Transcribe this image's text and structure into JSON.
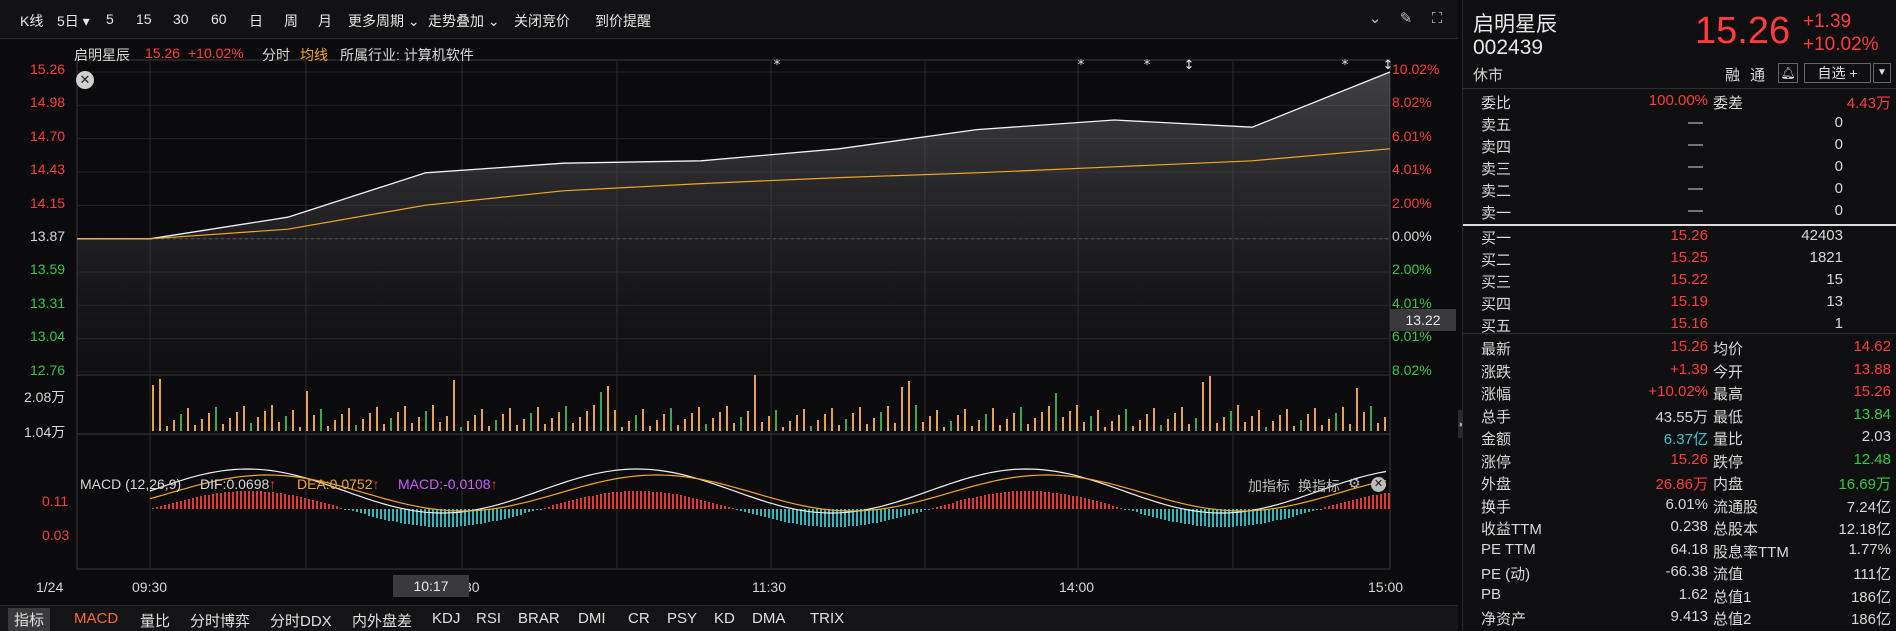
{
  "toolbar": {
    "items": [
      "K线",
      "5日",
      "5",
      "15",
      "30",
      "60",
      "日",
      "周",
      "月",
      "更多周期",
      "走势叠加",
      "关闭竞价",
      "到价提醒"
    ]
  },
  "header": {
    "name": "启明星辰",
    "price": "15.26",
    "pct": "+10.02%",
    "mode": "分时",
    "ma": "均线",
    "industry": "所属行业: 计算机软件"
  },
  "price_axis": {
    "left": [
      "15.26",
      "14.98",
      "14.70",
      "14.43",
      "14.15",
      "13.87",
      "13.59",
      "13.31",
      "13.04",
      "12.76"
    ],
    "right": [
      "10.02%",
      "8.02%",
      "6.01%",
      "4.01%",
      "2.00%",
      "0.00%",
      "2.00%",
      "4.01%",
      "6.01%",
      "8.02%"
    ],
    "cursor_value": "13.22"
  },
  "volume_axis": [
    "2.08万",
    "1.04万"
  ],
  "macd": {
    "title": "MACD (12,26,9)",
    "dif": "DIF:0.0698",
    "dea": "DEA:0.0752",
    "macd": "MACD:-0.0108",
    "axis": [
      "0.11",
      "0.03"
    ],
    "add_indicator": "加指标",
    "switch_indicator": "换指标"
  },
  "time_axis": {
    "date": "1/24",
    "labels": [
      "09:30",
      "30",
      "11:30",
      "14:00",
      "15:00"
    ],
    "cursor": "10:17"
  },
  "bottom_tabs": [
    "指标",
    "MACD",
    "量比",
    "分时博弈",
    "分时DDX",
    "内外盘差",
    "KDJ",
    "RSI",
    "BRAR",
    "DMI",
    "CR",
    "PSY",
    "KD",
    "DMA",
    "TRIX"
  ],
  "chart_data": {
    "type": "line",
    "title": "",
    "xlabel": "",
    "ylabel": "",
    "ylim": [
      12.76,
      15.26
    ],
    "prev_close": 13.87,
    "x": [
      "09:30",
      "10:00",
      "10:30",
      "11:00",
      "11:30",
      "13:00",
      "13:30",
      "14:00",
      "14:30",
      "15:00"
    ],
    "series": [
      {
        "name": "",
        "values": [
          13.87,
          14.05,
          14.42,
          14.5,
          14.52,
          14.62,
          14.78,
          14.86,
          14.8,
          15.26
        ]
      },
      {
        "name": "均线",
        "values": [
          13.87,
          13.95,
          14.15,
          14.27,
          14.33,
          14.38,
          14.42,
          14.47,
          14.52,
          14.62
        ]
      }
    ]
  },
  "quote": {
    "name": "启明星辰",
    "code": "002439",
    "status": "休市",
    "price": "15.26",
    "change": "+1.39",
    "pct": "+10.02%",
    "rong": "融",
    "tong": "通",
    "self_select": "自选 +",
    "weibi_label": "委比",
    "weibi": "100.00%",
    "weicha_label": "委差",
    "weicha": "4.43万",
    "sells": [
      {
        "label": "卖五",
        "price": "—",
        "vol": "0"
      },
      {
        "label": "卖四",
        "price": "—",
        "vol": "0"
      },
      {
        "label": "卖三",
        "price": "—",
        "vol": "0"
      },
      {
        "label": "卖二",
        "price": "—",
        "vol": "0"
      },
      {
        "label": "卖一",
        "price": "—",
        "vol": "0"
      }
    ],
    "buys": [
      {
        "label": "买一",
        "price": "15.26",
        "vol": "42403"
      },
      {
        "label": "买二",
        "price": "15.25",
        "vol": "1821"
      },
      {
        "label": "买三",
        "price": "15.22",
        "vol": "15"
      },
      {
        "label": "买四",
        "price": "15.19",
        "vol": "13"
      },
      {
        "label": "买五",
        "price": "15.16",
        "vol": "1"
      }
    ],
    "stats": [
      {
        "l1": "最新",
        "v1": "15.26",
        "c1": "red",
        "l2": "均价",
        "v2": "14.62",
        "c2": "red"
      },
      {
        "l1": "涨跌",
        "v1": "+1.39",
        "c1": "red",
        "l2": "今开",
        "v2": "13.88",
        "c2": "red"
      },
      {
        "l1": "涨幅",
        "v1": "+10.02%",
        "c1": "red",
        "l2": "最高",
        "v2": "15.26",
        "c2": "red"
      },
      {
        "l1": "总手",
        "v1": "43.55万",
        "c1": "white",
        "l2": "最低",
        "v2": "13.84",
        "c2": "green"
      },
      {
        "l1": "金额",
        "v1": "6.37亿",
        "c1": "cyan",
        "l2": "量比",
        "v2": "2.03",
        "c2": "white"
      },
      {
        "l1": "涨停",
        "v1": "15.26",
        "c1": "red",
        "l2": "跌停",
        "v2": "12.48",
        "c2": "green"
      },
      {
        "l1": "外盘",
        "v1": "26.86万",
        "c1": "red",
        "l2": "内盘",
        "v2": "16.69万",
        "c2": "green"
      },
      {
        "l1": "换手",
        "v1": "6.01%",
        "c1": "white",
        "l2": "流通股",
        "v2": "7.24亿",
        "c2": "white"
      },
      {
        "l1": "收益TTM",
        "v1": "0.238",
        "c1": "white",
        "l2": "总股本",
        "v2": "12.18亿",
        "c2": "white"
      },
      {
        "l1": "PE TTM",
        "v1": "64.18",
        "c1": "white",
        "l2": "股息率TTM",
        "v2": "1.77%",
        "c2": "white"
      },
      {
        "l1": "PE (动)",
        "v1": "-66.38",
        "c1": "white",
        "l2": "流值",
        "v2": "111亿",
        "c2": "white"
      },
      {
        "l1": "PB",
        "v1": "1.62",
        "c1": "white",
        "l2": "总值1",
        "v2": "186亿",
        "c2": "white"
      },
      {
        "l1": "净资产",
        "v1": "9.413",
        "c1": "white",
        "l2": "总值2",
        "v2": "186亿",
        "c2": "white"
      }
    ]
  },
  "colors": {
    "up": "#ff3b3b",
    "down": "#2ecc40",
    "avg": "#f5a623",
    "dea": "#f5a623",
    "macd": "#d05cff",
    "cyan": "#3fc7d6"
  }
}
